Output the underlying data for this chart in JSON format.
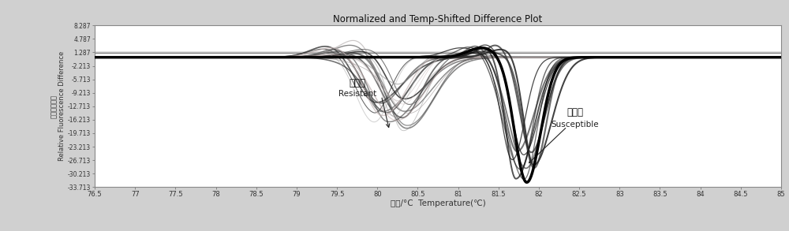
{
  "title": "Normalized and Temp-Shifted Difference Plot",
  "xlabel_cn": "温度/°C",
  "xlabel_en": "Temperature(℃)",
  "ylabel_cn": "相对荧光差分",
  "ylabel_en": "Relative Fluorescence Difference",
  "xlim": [
    76.5,
    85
  ],
  "ylim": [
    -33.713,
    8.287
  ],
  "xticks": [
    76.5,
    77,
    77.5,
    78,
    78.5,
    79,
    79.5,
    80,
    80.5,
    81,
    81.5,
    82,
    82.5,
    83,
    83.5,
    84,
    84.5,
    85
  ],
  "yticks": [
    8.287,
    4.787,
    1.287,
    -2.213,
    -5.713,
    -9.213,
    -12.713,
    -16.213,
    -19.713,
    -23.213,
    -26.713,
    -30.213,
    -33.713
  ],
  "label_resistant_cn": "抗病型",
  "label_resistant_en": "Resistant",
  "label_susceptible_cn": "易病型",
  "label_susceptible_en": "Susceptible",
  "bg_color": "#d0d0d0",
  "plot_bg_color": "#ffffff",
  "n_resistant": 22,
  "n_susceptible": 10
}
